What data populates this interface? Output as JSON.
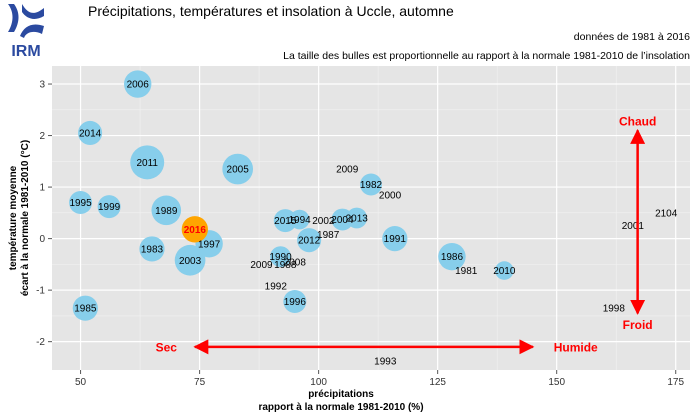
{
  "header": {
    "logo_text": "IRM",
    "title": "Précipitations, températures et insolation à Uccle, automne",
    "subtitle1": "données de 1981 à 2016",
    "subtitle2": "La taille des bulles est proportionnelle au rapport à la normale 1981-2010 de l’insolation"
  },
  "chart_data": {
    "type": "scatter",
    "xlabel_line1": "précipitations",
    "xlabel_line2": "rapport à la normale 1981-2010 (%)",
    "ylabel_line1": "température moyenne",
    "ylabel_line2": "écart à la normale 1981-2010 (°C)",
    "xlim": [
      44,
      178
    ],
    "ylim": [
      -2.55,
      3.35
    ],
    "xticks": [
      50,
      75,
      100,
      125,
      150,
      175
    ],
    "yticks": [
      -2,
      -1,
      0,
      1,
      2,
      3
    ],
    "grid": true,
    "bubble_color": "#87ceeb",
    "highlight_color": "#ffa500",
    "highlight_label_color": "#ff0000",
    "points": [
      {
        "year": "1981",
        "x": 131,
        "y": -0.62,
        "size": 0
      },
      {
        "year": "1982",
        "x": 111,
        "y": 1.05,
        "size": 0.45
      },
      {
        "year": "1983",
        "x": 65,
        "y": -0.2,
        "size": 0.6
      },
      {
        "year": "1985",
        "x": 51,
        "y": -1.35,
        "size": 0.6
      },
      {
        "year": "1986",
        "x": 128,
        "y": -0.35,
        "size": 0.7
      },
      {
        "year": "1987",
        "x": 102,
        "y": 0.08,
        "size": 0
      },
      {
        "year": "1988",
        "x": 93,
        "y": -0.5,
        "size": 0
      },
      {
        "year": "1989",
        "x": 68,
        "y": 0.55,
        "size": 0.8
      },
      {
        "year": "1990",
        "x": 92,
        "y": -0.35,
        "size": 0.4
      },
      {
        "year": "1991",
        "x": 116,
        "y": 0,
        "size": 0.6
      },
      {
        "year": "1992",
        "x": 91,
        "y": -0.92,
        "size": 0
      },
      {
        "year": "1993",
        "x": 114,
        "y": -2.38,
        "size": 0
      },
      {
        "year": "1994",
        "x": 96,
        "y": 0.37,
        "size": 0.35
      },
      {
        "year": "1995",
        "x": 50,
        "y": 0.7,
        "size": 0.5
      },
      {
        "year": "1996",
        "x": 95,
        "y": -1.22,
        "size": 0.5
      },
      {
        "year": "1997",
        "x": 77,
        "y": -0.1,
        "size": 0.7
      },
      {
        "year": "1998",
        "x": 162,
        "y": -1.35,
        "size": 0
      },
      {
        "year": "1999",
        "x": 56,
        "y": 0.62,
        "size": 0.5
      },
      {
        "year": "2000",
        "x": 115,
        "y": 0.85,
        "size": 0
      },
      {
        "year": "2001",
        "x": 166,
        "y": 0.25,
        "size": 0
      },
      {
        "year": "2002",
        "x": 101,
        "y": 0.35,
        "size": 0
      },
      {
        "year": "2004",
        "x": 105,
        "y": 0.37,
        "size": 0.45
      },
      {
        "year": "2005",
        "x": 83,
        "y": 1.35,
        "size": 0.85
      },
      {
        "year": "2006",
        "x": 62,
        "y": 3.0,
        "size": 0.7
      },
      {
        "year": "2008",
        "x": 95,
        "y": -0.45,
        "size": 0
      },
      {
        "year": "2009",
        "x": 88,
        "y": -0.5,
        "size": 0
      },
      {
        "year": "2011",
        "x": 64,
        "y": 1.48,
        "size": 1.0
      },
      {
        "year": "2012",
        "x": 98,
        "y": -0.03,
        "size": 0.55
      },
      {
        "year": "2013",
        "x": 108,
        "y": 0.4,
        "size": 0.4
      },
      {
        "year": "2014",
        "x": 52,
        "y": 2.05,
        "size": 0.55
      },
      {
        "year": "2015",
        "x": 93,
        "y": 0.35,
        "size": 0.5
      },
      {
        "year": "2016",
        "x": 74,
        "y": 0.18,
        "size": 0.65,
        "highlight": true
      },
      {
        "year": "2003",
        "x": 73,
        "y": -0.42,
        "size": 0.85
      },
      {
        "year": "2009",
        "x": 106,
        "y": 1.35,
        "size": 0
      },
      {
        "year": "2010",
        "x": 139,
        "y": -0.62,
        "size": 0.3
      },
      {
        "year": "2104",
        "x": 173,
        "y": 0.5,
        "size": 0
      }
    ],
    "annotations": {
      "hot": "Chaud",
      "cold": "Froid",
      "dry": "Sec",
      "wet": "Humide",
      "arrow_color": "#ff0000"
    }
  }
}
